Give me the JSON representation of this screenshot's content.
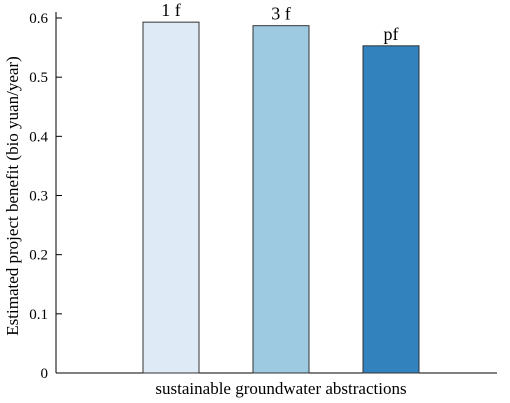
{
  "chart_data": {
    "type": "bar",
    "categories": [
      "1 f",
      "3 f",
      "pf"
    ],
    "values": [
      0.593,
      0.587,
      0.553
    ],
    "colors": [
      "#deebf7",
      "#9ecae1",
      "#3182bd"
    ],
    "title": "",
    "xlabel": "sustainable groundwater abstractions",
    "ylabel": "Estimated project benefit (bio yuan/year)",
    "ylim": [
      0,
      0.6
    ],
    "yticks": [
      0,
      0.1,
      0.2,
      0.3,
      0.4,
      0.5,
      0.6
    ],
    "ytick_labels": [
      "0",
      "0.1",
      "0.2",
      "0.3",
      "0.4",
      "0.5",
      "0.6"
    ],
    "grid": false,
    "legend": "none"
  }
}
